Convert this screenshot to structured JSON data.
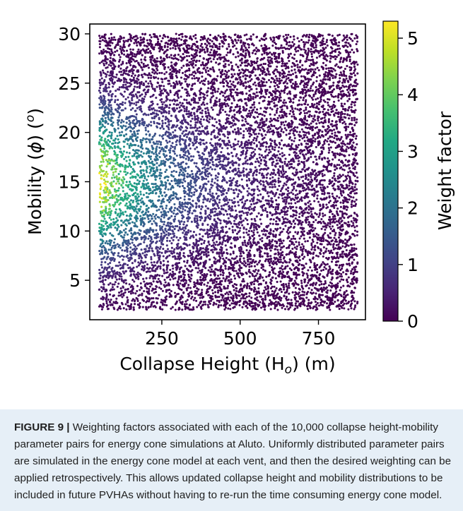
{
  "caption": {
    "label": "FIGURE 9 |",
    "text": " Weighting factors associated with each of the 10,000 collapse height-mobility parameter pairs for energy cone simulations at Aluto. Uniformly distributed parameter pairs are simulated in the energy cone model at each vent, and then the desired weighting can be applied retrospectively. This allows updated collapse height and mobility distributions to be included in future PVHAs without having to re-run the time consuming energy cone model."
  },
  "chart_data": {
    "type": "scatter",
    "title": "",
    "xlabel": "Collapse Height (H_o) (m)",
    "ylabel": "Mobility (φ) (°)",
    "xlim": [
      20,
      900
    ],
    "ylim": [
      1,
      31
    ],
    "xticks": [
      250,
      500,
      750
    ],
    "yticks": [
      5,
      10,
      15,
      20,
      25,
      30
    ],
    "n_points": 10000,
    "x_range": [
      50,
      875
    ],
    "y_range": [
      2,
      30
    ],
    "distribution": "uniform",
    "colormap": "viridis",
    "colorbar": {
      "label": "Weight factor",
      "range": [
        0,
        5.3
      ],
      "ticks": [
        0,
        1,
        2,
        3,
        4,
        5
      ]
    },
    "weight_peak": {
      "x": 60,
      "y": 15,
      "value": 5.2
    },
    "grid": false,
    "legend": "none"
  }
}
